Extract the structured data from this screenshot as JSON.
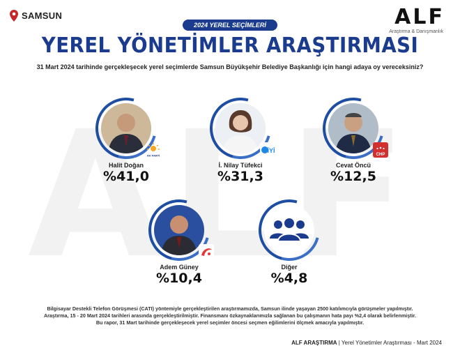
{
  "location": {
    "label": "SAMSUN",
    "icon": "map-pin-icon",
    "color": "#c62828"
  },
  "brand": {
    "name": "ALF",
    "subtitle": "Araştırma & Danışmanlık"
  },
  "badge": "2024 YEREL SEÇİMLERİ",
  "title": "YEREL YÖNETİMLER ARAŞTIRMASI",
  "question": "31 Mart 2024 tarihinde gerçekleşecek yerel seçimlerde Samsun Büyükşehir Belediye Başkanlığı için hangi adaya oy vereceksiniz?",
  "watermark": "ALF",
  "candidates": [
    {
      "name": "Halit Doğan",
      "percent": "%41,0",
      "value": 41.0,
      "party_icon": "ak-parti-logo-icon",
      "party_label": "AK PARTİ"
    },
    {
      "name": "İ. Nilay Tüfekci",
      "percent": "%31,3",
      "value": 31.3,
      "party_icon": "iyi-parti-logo-icon",
      "party_label": "İYİ"
    },
    {
      "name": "Cevat Öncü",
      "percent": "%12,5",
      "value": 12.5,
      "party_icon": "chp-logo-icon",
      "party_label": "CHP"
    },
    {
      "name": "Adem Güney",
      "percent": "%10,4",
      "value": 10.4,
      "party_icon": "yeniden-refah-logo-icon"
    },
    {
      "name": "Diğer",
      "percent": "%4,8",
      "value": 4.8,
      "party_icon": "group-icon"
    }
  ],
  "footer": {
    "lines": [
      "Bilgisayar Destekli Telefon Görüşmesi (CATI) yöntemiyle gerçekleştirilen araştırmamızda, Samsun ilinde yaşayan 2500 katılımcıyla görüşmeler yapılmıştır.",
      "Araştırma, 15 - 20 Mart 2024 tarihleri arasında gerçekleştirilmiştir. Finansmanı özkaynaklarımızla sağlanan bu çalışmanın hata payı %2,4 olarak belirlenmiştir.",
      "Bu rapor, 31 Mart tarihinde gerçekleşecek yerel seçimler öncesi seçmen eğilimlerini ölçmek amacıyla yapılmıştır."
    ],
    "source_bold": "ALF ARAŞTIRMA",
    "source_rest": " | Yerel Yönetimler Araştırması - Mart 2024"
  },
  "colors": {
    "primary": "#1b3c8e",
    "ring": "#1d4ea3",
    "chp": "#d32f2f",
    "iyi": "#1e88e5",
    "akp": "#f9a825",
    "yrp": "#e53935"
  }
}
